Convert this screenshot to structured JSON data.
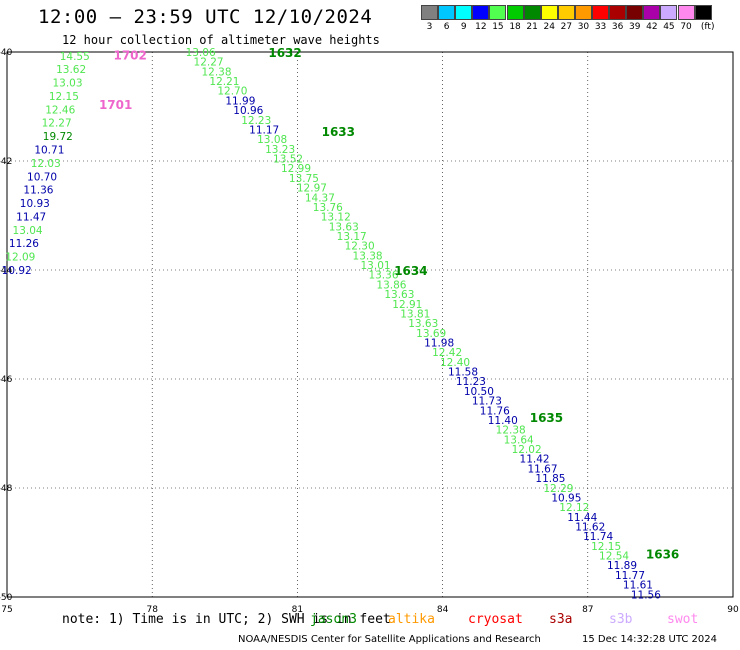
{
  "header": {
    "title": "12:00 – 23:59 UTC 12/10/2024",
    "subtitle": "12 hour collection of altimeter wave heights"
  },
  "colorbar": {
    "unit": "(ft)",
    "segments": [
      {
        "color": "#808080",
        "label": "3"
      },
      {
        "color": "#00c8ff",
        "label": "6"
      },
      {
        "color": "#00ffff",
        "label": "9"
      },
      {
        "color": "#0000ff",
        "label": "12"
      },
      {
        "color": "#50ff50",
        "label": "15"
      },
      {
        "color": "#00cc00",
        "label": "18"
      },
      {
        "color": "#008800",
        "label": "21"
      },
      {
        "color": "#ffff00",
        "label": "24"
      },
      {
        "color": "#ffcc00",
        "label": "27"
      },
      {
        "color": "#ff9900",
        "label": "30"
      },
      {
        "color": "#ff0000",
        "label": "33"
      },
      {
        "color": "#aa0000",
        "label": "36"
      },
      {
        "color": "#770000",
        "label": "39"
      },
      {
        "color": "#aa00aa",
        "label": "42"
      },
      {
        "color": "#ccaaff",
        "label": "45"
      },
      {
        "color": "#ff88ee",
        "label": "70"
      },
      {
        "color": "#000000",
        "label": ""
      }
    ]
  },
  "axes": {
    "x_ticks": [
      "75",
      "78",
      "81",
      "84",
      "87",
      "90"
    ],
    "y_ticks": [
      "-40",
      "-42",
      "-44",
      "-46",
      "-48",
      "-50"
    ]
  },
  "colors": {
    "light_green": "#50e650",
    "dark_green": "#008800",
    "blue": "#0000aa",
    "pink": "#ee66cc"
  },
  "labels": {
    "times": [
      {
        "text": "1702",
        "lon": 77.2,
        "lat": -40.05,
        "c": "pink"
      },
      {
        "text": "1701",
        "lon": 76.9,
        "lat": -40.95,
        "c": "pink"
      },
      {
        "text": "1632",
        "lon": 80.4,
        "lat": -40.0,
        "c": "dark_green"
      },
      {
        "text": "1633",
        "lon": 81.5,
        "lat": -41.45,
        "c": "dark_green"
      },
      {
        "text": "1634",
        "lon": 83.0,
        "lat": -44.0,
        "c": "dark_green"
      },
      {
        "text": "1635",
        "lon": 85.8,
        "lat": -46.7,
        "c": "dark_green"
      },
      {
        "text": "1636",
        "lon": 88.2,
        "lat": -49.2,
        "c": "dark_green"
      }
    ],
    "track_left": [
      {
        "text": "14.55",
        "c": "light_green"
      },
      {
        "text": "13.62",
        "c": "light_green"
      },
      {
        "text": "13.03",
        "c": "light_green"
      },
      {
        "text": "12.15",
        "c": "light_green"
      },
      {
        "text": "12.46",
        "c": "light_green"
      },
      {
        "text": "12.27",
        "c": "light_green"
      },
      {
        "text": "19.72",
        "c": "dark_green"
      },
      {
        "text": "10.71",
        "c": "blue"
      },
      {
        "text": "12.03",
        "c": "light_green"
      },
      {
        "text": "10.70",
        "c": "blue"
      },
      {
        "text": "11.36",
        "c": "blue"
      },
      {
        "text": "10.93",
        "c": "blue"
      },
      {
        "text": "11.47",
        "c": "blue"
      },
      {
        "text": "13.04",
        "c": "light_green"
      },
      {
        "text": "11.26",
        "c": "blue"
      },
      {
        "text": "12.09",
        "c": "light_green"
      },
      {
        "text": "10.92",
        "c": "blue"
      }
    ],
    "track_main": [
      {
        "text": "13.06",
        "c": "light_green"
      },
      {
        "text": "12.27",
        "c": "light_green"
      },
      {
        "text": "12.38",
        "c": "light_green"
      },
      {
        "text": "12.21",
        "c": "light_green"
      },
      {
        "text": "12.70",
        "c": "light_green"
      },
      {
        "text": "11.99",
        "c": "blue"
      },
      {
        "text": "10.96",
        "c": "blue"
      },
      {
        "text": "12.23",
        "c": "light_green"
      },
      {
        "text": "11.17",
        "c": "blue"
      },
      {
        "text": "13.08",
        "c": "light_green"
      },
      {
        "text": "13.23",
        "c": "light_green"
      },
      {
        "text": "13.52",
        "c": "light_green"
      },
      {
        "text": "12.99",
        "c": "light_green"
      },
      {
        "text": "13.75",
        "c": "light_green"
      },
      {
        "text": "12.97",
        "c": "light_green"
      },
      {
        "text": "14.37",
        "c": "light_green"
      },
      {
        "text": "13.76",
        "c": "light_green"
      },
      {
        "text": "13.12",
        "c": "light_green"
      },
      {
        "text": "13.63",
        "c": "light_green"
      },
      {
        "text": "13.17",
        "c": "light_green"
      },
      {
        "text": "12.30",
        "c": "light_green"
      },
      {
        "text": "13.38",
        "c": "light_green"
      },
      {
        "text": "13.01",
        "c": "light_green"
      },
      {
        "text": "13.36",
        "c": "light_green"
      },
      {
        "text": "13.86",
        "c": "light_green"
      },
      {
        "text": "13.63",
        "c": "light_green"
      },
      {
        "text": "12.91",
        "c": "light_green"
      },
      {
        "text": "13.81",
        "c": "light_green"
      },
      {
        "text": "13.63",
        "c": "light_green"
      },
      {
        "text": "13.69",
        "c": "light_green"
      },
      {
        "text": "11.98",
        "c": "blue"
      },
      {
        "text": "12.42",
        "c": "light_green"
      },
      {
        "text": "12.40",
        "c": "light_green"
      },
      {
        "text": "11.58",
        "c": "blue"
      },
      {
        "text": "11.23",
        "c": "blue"
      },
      {
        "text": "10.50",
        "c": "blue"
      },
      {
        "text": "11.73",
        "c": "blue"
      },
      {
        "text": "11.76",
        "c": "blue"
      },
      {
        "text": "11.40",
        "c": "blue"
      },
      {
        "text": "12.38",
        "c": "light_green"
      },
      {
        "text": "13.64",
        "c": "light_green"
      },
      {
        "text": "12.02",
        "c": "light_green"
      },
      {
        "text": "11.42",
        "c": "blue"
      },
      {
        "text": "11.67",
        "c": "blue"
      },
      {
        "text": "11.85",
        "c": "blue"
      },
      {
        "text": "12.29",
        "c": "light_green"
      },
      {
        "text": "10.95",
        "c": "blue"
      },
      {
        "text": "12.12",
        "c": "light_green"
      },
      {
        "text": "11.44",
        "c": "blue"
      },
      {
        "text": "11.62",
        "c": "blue"
      },
      {
        "text": "11.74",
        "c": "blue"
      },
      {
        "text": "12.15",
        "c": "light_green"
      },
      {
        "text": "12.54",
        "c": "light_green"
      },
      {
        "text": "11.89",
        "c": "blue"
      },
      {
        "text": "11.77",
        "c": "blue"
      },
      {
        "text": "11.61",
        "c": "blue"
      },
      {
        "text": "11.56",
        "c": "blue"
      }
    ]
  },
  "footer": {
    "note": "note:  1) Time is in UTC; 2) SWH is in feet",
    "legend": [
      {
        "text": "jason3",
        "color": "#008800"
      },
      {
        "text": "altika",
        "color": "#ff9900"
      },
      {
        "text": "cryosat",
        "color": "#ff0000"
      },
      {
        "text": "s3a",
        "color": "#aa0000"
      },
      {
        "text": "s3b",
        "color": "#ccaaff"
      },
      {
        "text": "swot",
        "color": "#ff88ee"
      }
    ],
    "credit": "NOAA/NESDIS Center for Satellite Applications and Research",
    "timestamp": "15 Dec 14:32:28 UTC 2024"
  }
}
